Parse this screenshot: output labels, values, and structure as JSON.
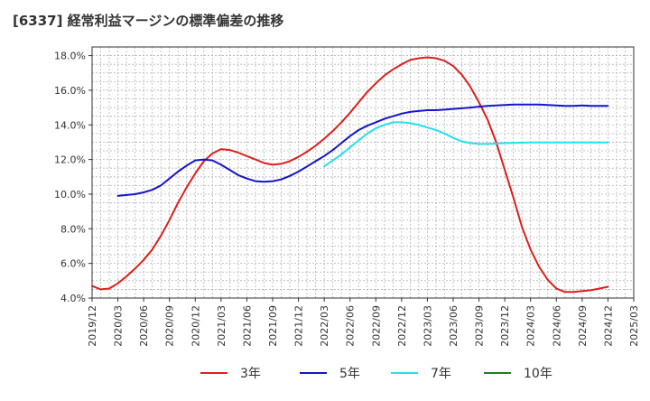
{
  "title": "[6337]  経常利益マージンの標準偏差の推移",
  "chart_data": {
    "type": "line",
    "title": "[6337]  経常利益マージンの標準偏差の推移",
    "xlabel": "",
    "ylabel": "",
    "ylim": [
      4.0,
      18.5
    ],
    "y_ticks": [
      4,
      6,
      8,
      10,
      12,
      14,
      16,
      18
    ],
    "y_tick_labels": [
      "4.0%",
      "6.0%",
      "8.0%",
      "10.0%",
      "12.0%",
      "14.0%",
      "16.0%",
      "18.0%"
    ],
    "x_ticks": [
      "2019/12",
      "2020/03",
      "2020/06",
      "2020/09",
      "2020/12",
      "2021/03",
      "2021/06",
      "2021/09",
      "2021/12",
      "2022/03",
      "2022/06",
      "2022/09",
      "2022/12",
      "2023/03",
      "2023/06",
      "2023/09",
      "2023/12",
      "2024/03",
      "2024/06",
      "2024/09",
      "2024/12",
      "2025/03"
    ],
    "grid": true,
    "legend_position": "bottom",
    "series": [
      {
        "name": "3年",
        "color": "#dd1f1f",
        "x": [
          "2019/12",
          "2020/01",
          "2020/02",
          "2020/03",
          "2020/04",
          "2020/05",
          "2020/06",
          "2020/07",
          "2020/08",
          "2020/09",
          "2020/10",
          "2020/11",
          "2020/12",
          "2021/01",
          "2021/02",
          "2021/03",
          "2021/04",
          "2021/05",
          "2021/06",
          "2021/07",
          "2021/08",
          "2021/09",
          "2021/10",
          "2021/11",
          "2021/12",
          "2022/01",
          "2022/02",
          "2022/03",
          "2022/04",
          "2022/05",
          "2022/06",
          "2022/07",
          "2022/08",
          "2022/09",
          "2022/10",
          "2022/11",
          "2022/12",
          "2023/01",
          "2023/02",
          "2023/03",
          "2023/04",
          "2023/05",
          "2023/06",
          "2023/07",
          "2023/08",
          "2023/09",
          "2023/10",
          "2023/11",
          "2023/12",
          "2024/01",
          "2024/02",
          "2024/03",
          "2024/04",
          "2024/05",
          "2024/06",
          "2024/07",
          "2024/08",
          "2024/09",
          "2024/10",
          "2024/11",
          "2024/12"
        ],
        "values": [
          4.7,
          4.5,
          4.55,
          4.85,
          5.25,
          5.7,
          6.2,
          6.8,
          7.6,
          8.5,
          9.5,
          10.4,
          11.2,
          11.9,
          12.35,
          12.6,
          12.55,
          12.4,
          12.2,
          12.0,
          11.8,
          11.7,
          11.75,
          11.9,
          12.15,
          12.45,
          12.8,
          13.2,
          13.65,
          14.15,
          14.7,
          15.3,
          15.9,
          16.4,
          16.85,
          17.2,
          17.5,
          17.75,
          17.85,
          17.9,
          17.85,
          17.7,
          17.4,
          16.9,
          16.2,
          15.3,
          14.3,
          13.0,
          11.4,
          9.8,
          8.1,
          6.8,
          5.8,
          5.05,
          4.55,
          4.35,
          4.35,
          4.4,
          4.45,
          4.55,
          4.65
        ]
      },
      {
        "name": "5年",
        "color": "#1515c8",
        "x": [
          "2020/03",
          "2020/04",
          "2020/05",
          "2020/06",
          "2020/07",
          "2020/08",
          "2020/09",
          "2020/10",
          "2020/11",
          "2020/12",
          "2021/01",
          "2021/02",
          "2021/03",
          "2021/04",
          "2021/05",
          "2021/06",
          "2021/07",
          "2021/08",
          "2021/09",
          "2021/10",
          "2021/11",
          "2021/12",
          "2022/01",
          "2022/02",
          "2022/03",
          "2022/04",
          "2022/05",
          "2022/06",
          "2022/07",
          "2022/08",
          "2022/09",
          "2022/10",
          "2022/11",
          "2022/12",
          "2023/01",
          "2023/02",
          "2023/03",
          "2023/04",
          "2023/05",
          "2023/06",
          "2023/07",
          "2023/08",
          "2023/09",
          "2023/10",
          "2023/11",
          "2023/12",
          "2024/01",
          "2024/02",
          "2024/03",
          "2024/04",
          "2024/05",
          "2024/06",
          "2024/07",
          "2024/08",
          "2024/09",
          "2024/10",
          "2024/11",
          "2024/12"
        ],
        "values": [
          9.9,
          9.95,
          10.0,
          10.1,
          10.25,
          10.5,
          10.9,
          11.3,
          11.65,
          11.95,
          12.0,
          11.95,
          11.7,
          11.4,
          11.1,
          10.9,
          10.75,
          10.72,
          10.75,
          10.85,
          11.05,
          11.3,
          11.6,
          11.9,
          12.2,
          12.55,
          12.95,
          13.35,
          13.7,
          13.95,
          14.15,
          14.35,
          14.5,
          14.65,
          14.75,
          14.8,
          14.85,
          14.85,
          14.88,
          14.92,
          14.96,
          15.0,
          15.05,
          15.1,
          15.12,
          15.15,
          15.17,
          15.18,
          15.18,
          15.17,
          15.15,
          15.12,
          15.1,
          15.1,
          15.12,
          15.1,
          15.1,
          15.1
        ]
      },
      {
        "name": "7年",
        "color": "#22e0ee",
        "x": [
          "2022/03",
          "2022/04",
          "2022/05",
          "2022/06",
          "2022/07",
          "2022/08",
          "2022/09",
          "2022/10",
          "2022/11",
          "2022/12",
          "2023/01",
          "2023/02",
          "2023/03",
          "2023/04",
          "2023/05",
          "2023/06",
          "2023/07",
          "2023/08",
          "2023/09",
          "2023/10",
          "2023/11",
          "2023/12",
          "2024/01",
          "2024/02",
          "2024/03",
          "2024/04",
          "2024/05",
          "2024/06",
          "2024/07",
          "2024/08",
          "2024/09",
          "2024/10",
          "2024/11",
          "2024/12"
        ],
        "values": [
          11.6,
          11.95,
          12.3,
          12.7,
          13.1,
          13.5,
          13.8,
          14.0,
          14.15,
          14.15,
          14.1,
          14.0,
          13.85,
          13.7,
          13.5,
          13.25,
          13.05,
          12.95,
          12.9,
          12.9,
          12.92,
          12.95,
          12.96,
          12.97,
          12.98,
          12.98,
          12.98,
          12.98,
          12.98,
          12.98,
          12.98,
          12.98,
          12.98,
          12.98
        ]
      },
      {
        "name": "10年",
        "color": "#1e7d1e",
        "x": [],
        "values": []
      }
    ]
  }
}
